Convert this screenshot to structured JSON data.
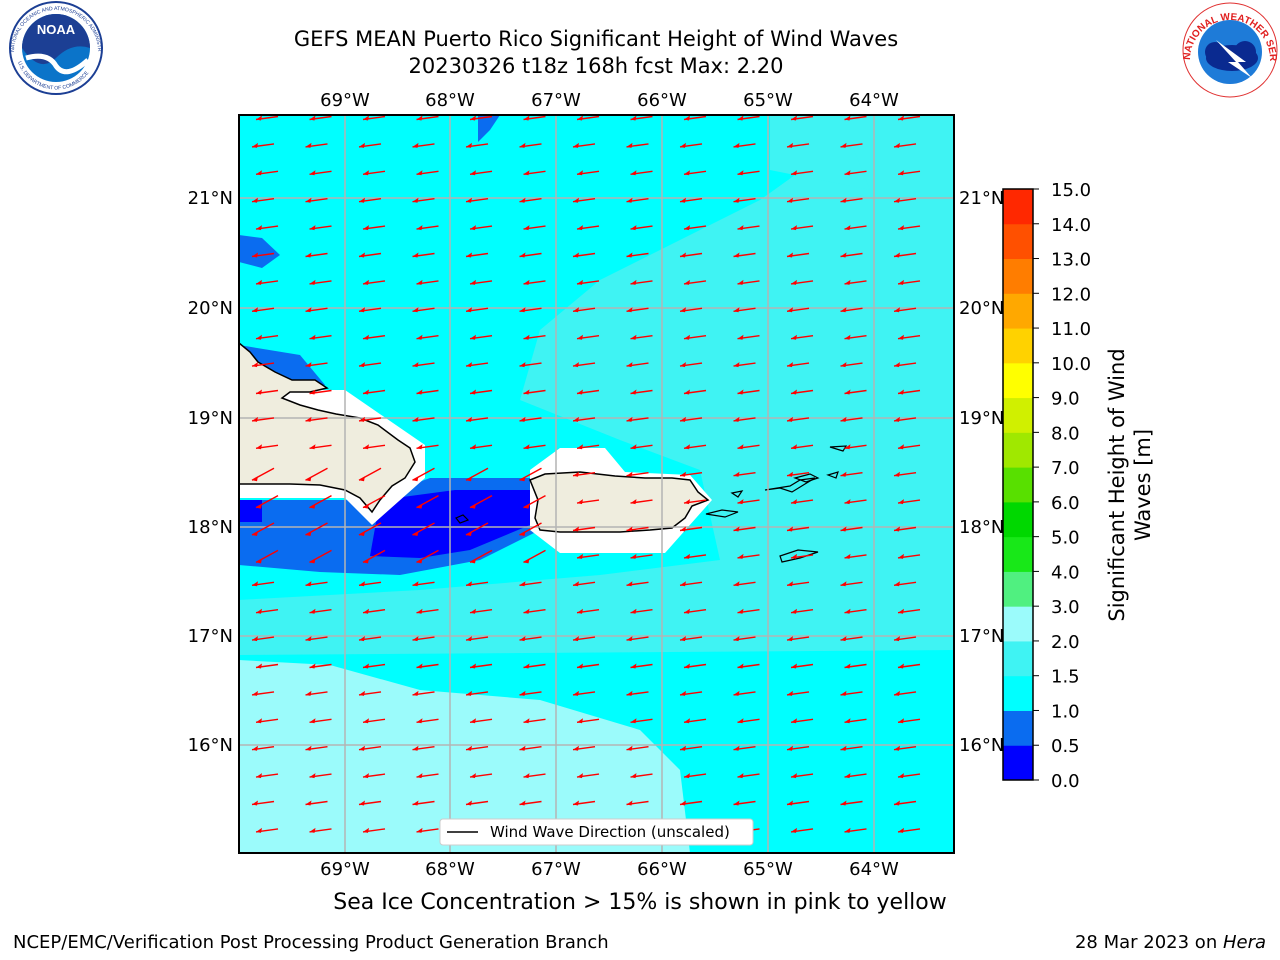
{
  "title_line1": "GEFS MEAN Puerto Rico Significant Height of Wind Waves",
  "title_line2": "20230326 t18z 168h fcst   Max: 2.20",
  "lon_labels": [
    "69°W",
    "68°W",
    "67°W",
    "66°W",
    "65°W",
    "64°W"
  ],
  "lat_labels": [
    "21°N",
    "20°N",
    "19°N",
    "18°N",
    "17°N",
    "16°N"
  ],
  "colorbar": {
    "label_line1": "Significant Height of Wind",
    "label_line2": "Waves [m]",
    "ticks": [
      "0.0",
      "0.5",
      "1.0",
      "1.5",
      "2.0",
      "3.0",
      "4.0",
      "5.0",
      "6.0",
      "7.0",
      "8.0",
      "9.0",
      "10.0",
      "11.0",
      "12.0",
      "13.0",
      "14.0",
      "15.0"
    ],
    "colors": [
      "#0000ff",
      "#0a6cf0",
      "#00ffff",
      "#3ff3f3",
      "#9bfbfb",
      "#50f080",
      "#18e818",
      "#00d800",
      "#58e000",
      "#a0e800",
      "#d0f000",
      "#ffff00",
      "#ffd200",
      "#ffa800",
      "#ff7d00",
      "#ff5000",
      "#ff2800",
      "#ff0000"
    ]
  },
  "legend_label": "Wind Wave Direction (unscaled)",
  "ice_note": "Sea Ice Concentration > 15% is shown in pink to yellow",
  "footer_left": "NCEP/EMC/Verification Post Processing Product Generation Branch",
  "footer_right_prefix": "28 Mar 2023 on ",
  "footer_right_host": "Hera",
  "logos": {
    "noaa_text": "NOAA",
    "noaa_ring_text": "NATIONAL OCEANIC AND ATMOSPHERIC ADMINISTRATION",
    "noaa_ring_text_bottom": "U.S. DEPARTMENT OF COMMERCE",
    "nws_ring_text": "NATIONAL WEATHER SERVICE"
  },
  "map_colors": {
    "land": "#efedde",
    "ocean_1_1p5": "#00ffff",
    "ocean_1p5_2": "#3ff3f3",
    "ocean_2_3": "#9bfbfb",
    "ocean_0p5_1": "#0a6cf0",
    "ocean_0_0p5": "#0000ff",
    "arrow": "#ff0000"
  },
  "icons": {
    "noaa_logo": "noaa-logo-icon",
    "nws_logo": "nws-logo-icon"
  }
}
